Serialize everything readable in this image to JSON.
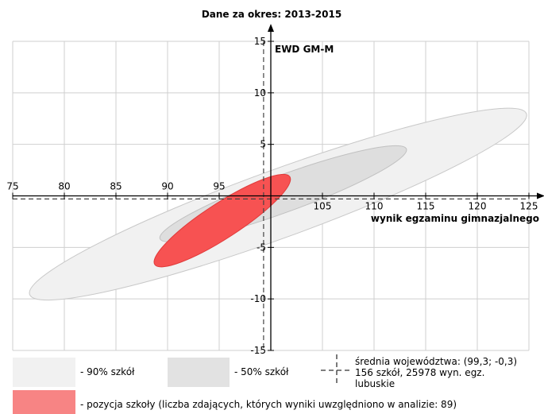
{
  "chart_data": {
    "type": "scatter",
    "title": "Dane za okres: 2013-2015",
    "xlabel": "wynik egzaminu gimnazjalnego",
    "ylabel": "EWD GM-M",
    "xlim": [
      75,
      125
    ],
    "ylim": [
      -15,
      15
    ],
    "x_ticks": [
      75,
      80,
      85,
      90,
      95,
      100,
      105,
      110,
      115,
      120,
      125
    ],
    "y_ticks": [
      -15,
      -10,
      -5,
      0,
      5,
      10,
      15
    ],
    "grid": true,
    "legend_position": "bottom",
    "mean_point": {
      "x": 99.3,
      "y": -0.3
    },
    "ellipses": [
      {
        "name": "90% szkół",
        "cx": 100.7,
        "cy": -0.8,
        "rx": 25.6,
        "ry": 3.3,
        "angle_deg": -20,
        "color": "#f1f1f1",
        "stroke": "#c8c8c8"
      },
      {
        "name": "50% szkół",
        "cx": 101.2,
        "cy": 0.2,
        "rx": 12.7,
        "ry": 1.8,
        "angle_deg": -20,
        "color": "#dedede",
        "stroke": "#c0c0c0"
      },
      {
        "name": "pozycja szkoły",
        "cx": 95.3,
        "cy": -2.4,
        "rx": 7.8,
        "ry": 1.7,
        "angle_deg": -33,
        "color": "#f75252",
        "stroke": "#e03a3a"
      }
    ]
  },
  "legend": {
    "items": [
      {
        "label": "- 90% szkół",
        "color": "#f1f1f1"
      },
      {
        "label": "- 50% szkół",
        "color": "#e2e2e2"
      },
      {
        "label": "- pozycja szkoły (liczba zdających, których wyniki uwzględniono w analizie: 89)",
        "color": "#f78484"
      }
    ],
    "mean_label_line1": "średnia województwa: (99,3; -0,3)",
    "mean_label_line2": "156 szkół, 25978 wyn. egz.",
    "mean_label_line3": "lubuskie"
  }
}
